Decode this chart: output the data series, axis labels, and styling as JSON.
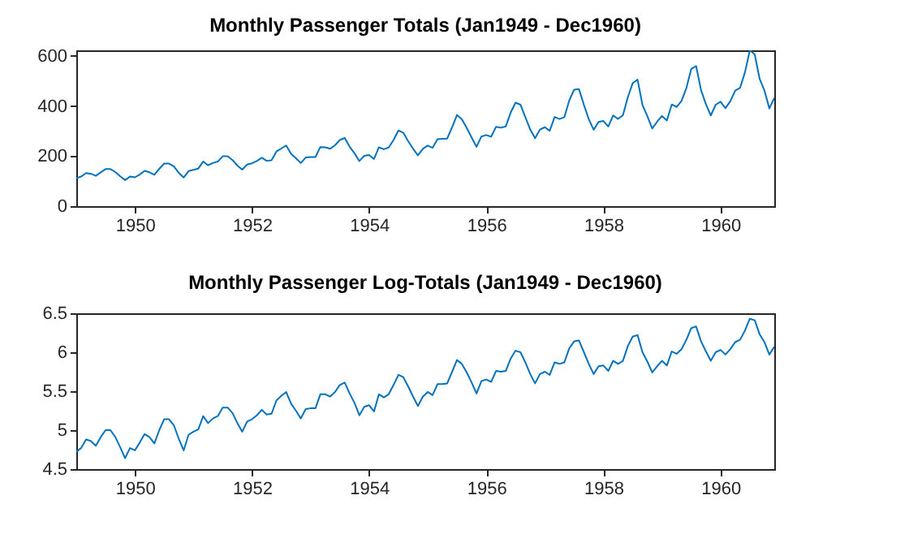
{
  "chart_data": [
    {
      "type": "line",
      "title": "Monthly Passenger Totals (Jan1949 - Dec1960)",
      "xlim": [
        1949,
        1960.917
      ],
      "xticks": [
        1950,
        1952,
        1954,
        1956,
        1958,
        1960
      ],
      "ylim": [
        0,
        622
      ],
      "yticks": [
        0,
        200,
        400,
        600
      ],
      "grid": false,
      "x": [
        1949,
        1949.083,
        1949.167,
        1949.25,
        1949.333,
        1949.417,
        1949.5,
        1949.583,
        1949.667,
        1949.75,
        1949.833,
        1949.917,
        1950,
        1950.083,
        1950.167,
        1950.25,
        1950.333,
        1950.417,
        1950.5,
        1950.583,
        1950.667,
        1950.75,
        1950.833,
        1950.917,
        1951,
        1951.083,
        1951.167,
        1951.25,
        1951.333,
        1951.417,
        1951.5,
        1951.583,
        1951.667,
        1951.75,
        1951.833,
        1951.917,
        1952,
        1952.083,
        1952.167,
        1952.25,
        1952.333,
        1952.417,
        1952.5,
        1952.583,
        1952.667,
        1952.75,
        1952.833,
        1952.917,
        1953,
        1953.083,
        1953.167,
        1953.25,
        1953.333,
        1953.417,
        1953.5,
        1953.583,
        1953.667,
        1953.75,
        1953.833,
        1953.917,
        1954,
        1954.083,
        1954.167,
        1954.25,
        1954.333,
        1954.417,
        1954.5,
        1954.583,
        1954.667,
        1954.75,
        1954.833,
        1954.917,
        1955,
        1955.083,
        1955.167,
        1955.25,
        1955.333,
        1955.417,
        1955.5,
        1955.583,
        1955.667,
        1955.75,
        1955.833,
        1955.917,
        1956,
        1956.083,
        1956.167,
        1956.25,
        1956.333,
        1956.417,
        1956.5,
        1956.583,
        1956.667,
        1956.75,
        1956.833,
        1956.917,
        1957,
        1957.083,
        1957.167,
        1957.25,
        1957.333,
        1957.417,
        1957.5,
        1957.583,
        1957.667,
        1957.75,
        1957.833,
        1957.917,
        1958,
        1958.083,
        1958.167,
        1958.25,
        1958.333,
        1958.417,
        1958.5,
        1958.583,
        1958.667,
        1958.75,
        1958.833,
        1958.917,
        1959,
        1959.083,
        1959.167,
        1959.25,
        1959.333,
        1959.417,
        1959.5,
        1959.583,
        1959.667,
        1959.75,
        1959.833,
        1959.917,
        1960,
        1960.083,
        1960.167,
        1960.25,
        1960.333,
        1960.417,
        1960.5,
        1960.583,
        1960.667,
        1960.75,
        1960.833,
        1960.917
      ],
      "series": [
        {
          "color": "#0072bd",
          "values": [
            112,
            118,
            132,
            129,
            121,
            135,
            148,
            148,
            136,
            119,
            104,
            118,
            115,
            126,
            141,
            135,
            125,
            149,
            170,
            170,
            158,
            133,
            114,
            140,
            145,
            150,
            178,
            163,
            172,
            178,
            199,
            199,
            184,
            162,
            146,
            166,
            171,
            180,
            193,
            181,
            183,
            218,
            230,
            242,
            209,
            191,
            172,
            194,
            196,
            196,
            236,
            235,
            229,
            243,
            264,
            272,
            237,
            211,
            180,
            201,
            204,
            188,
            235,
            227,
            234,
            264,
            302,
            293,
            259,
            229,
            203,
            229,
            242,
            233,
            267,
            269,
            270,
            315,
            364,
            347,
            312,
            274,
            237,
            278,
            284,
            277,
            317,
            313,
            318,
            374,
            413,
            405,
            355,
            306,
            271,
            306,
            315,
            301,
            356,
            348,
            355,
            422,
            465,
            467,
            404,
            347,
            305,
            336,
            340,
            318,
            362,
            348,
            363,
            435,
            491,
            505,
            404,
            359,
            310,
            337,
            360,
            342,
            406,
            396,
            420,
            472,
            548,
            559,
            463,
            407,
            362,
            405,
            417,
            391,
            419,
            461,
            472,
            535,
            622,
            606,
            508,
            461,
            390,
            432
          ]
        }
      ]
    },
    {
      "type": "line",
      "title": "Monthly Passenger Log-Totals (Jan1949 - Dec1960)",
      "xlim": [
        1949,
        1960.917
      ],
      "xticks": [
        1950,
        1952,
        1954,
        1956,
        1958,
        1960
      ],
      "ylim": [
        4.5,
        6.5
      ],
      "yticks": [
        4.5,
        5,
        5.5,
        6,
        6.5
      ],
      "grid": false,
      "x": [
        1949,
        1949.083,
        1949.167,
        1949.25,
        1949.333,
        1949.417,
        1949.5,
        1949.583,
        1949.667,
        1949.75,
        1949.833,
        1949.917,
        1950,
        1950.083,
        1950.167,
        1950.25,
        1950.333,
        1950.417,
        1950.5,
        1950.583,
        1950.667,
        1950.75,
        1950.833,
        1950.917,
        1951,
        1951.083,
        1951.167,
        1951.25,
        1951.333,
        1951.417,
        1951.5,
        1951.583,
        1951.667,
        1951.75,
        1951.833,
        1951.917,
        1952,
        1952.083,
        1952.167,
        1952.25,
        1952.333,
        1952.417,
        1952.5,
        1952.583,
        1952.667,
        1952.75,
        1952.833,
        1952.917,
        1953,
        1953.083,
        1953.167,
        1953.25,
        1953.333,
        1953.417,
        1953.5,
        1953.583,
        1953.667,
        1953.75,
        1953.833,
        1953.917,
        1954,
        1954.083,
        1954.167,
        1954.25,
        1954.333,
        1954.417,
        1954.5,
        1954.583,
        1954.667,
        1954.75,
        1954.833,
        1954.917,
        1955,
        1955.083,
        1955.167,
        1955.25,
        1955.333,
        1955.417,
        1955.5,
        1955.583,
        1955.667,
        1955.75,
        1955.833,
        1955.917,
        1956,
        1956.083,
        1956.167,
        1956.25,
        1956.333,
        1956.417,
        1956.5,
        1956.583,
        1956.667,
        1956.75,
        1956.833,
        1956.917,
        1957,
        1957.083,
        1957.167,
        1957.25,
        1957.333,
        1957.417,
        1957.5,
        1957.583,
        1957.667,
        1957.75,
        1957.833,
        1957.917,
        1958,
        1958.083,
        1958.167,
        1958.25,
        1958.333,
        1958.417,
        1958.5,
        1958.583,
        1958.667,
        1958.75,
        1958.833,
        1958.917,
        1959,
        1959.083,
        1959.167,
        1959.25,
        1959.333,
        1959.417,
        1959.5,
        1959.583,
        1959.667,
        1959.75,
        1959.833,
        1959.917,
        1960,
        1960.083,
        1960.167,
        1960.25,
        1960.333,
        1960.417,
        1960.5,
        1960.583,
        1960.667,
        1960.75,
        1960.833,
        1960.917
      ],
      "series": [
        {
          "color": "#0072bd",
          "values": [
            4.72,
            4.77,
            4.88,
            4.86,
            4.8,
            4.91,
            5.0,
            5.0,
            4.91,
            4.78,
            4.64,
            4.77,
            4.74,
            4.84,
            4.95,
            4.91,
            4.83,
            5.0,
            5.14,
            5.14,
            5.06,
            4.89,
            4.74,
            4.94,
            4.98,
            5.01,
            5.18,
            5.09,
            5.15,
            5.18,
            5.29,
            5.29,
            5.22,
            5.09,
            4.98,
            5.11,
            5.14,
            5.19,
            5.26,
            5.2,
            5.21,
            5.38,
            5.44,
            5.49,
            5.34,
            5.25,
            5.15,
            5.27,
            5.28,
            5.28,
            5.46,
            5.46,
            5.43,
            5.49,
            5.58,
            5.61,
            5.47,
            5.35,
            5.19,
            5.3,
            5.32,
            5.24,
            5.46,
            5.42,
            5.46,
            5.58,
            5.71,
            5.68,
            5.56,
            5.43,
            5.31,
            5.43,
            5.49,
            5.45,
            5.59,
            5.59,
            5.6,
            5.75,
            5.9,
            5.85,
            5.74,
            5.61,
            5.47,
            5.63,
            5.65,
            5.62,
            5.76,
            5.75,
            5.76,
            5.92,
            6.02,
            6.0,
            5.87,
            5.72,
            5.6,
            5.72,
            5.75,
            5.71,
            5.87,
            5.85,
            5.87,
            6.05,
            6.14,
            6.15,
            6.0,
            5.85,
            5.72,
            5.82,
            5.83,
            5.76,
            5.89,
            5.85,
            5.89,
            6.08,
            6.2,
            6.22,
            6.0,
            5.88,
            5.74,
            5.82,
            5.89,
            5.83,
            6.01,
            5.98,
            6.04,
            6.16,
            6.31,
            6.33,
            6.14,
            6.01,
            5.89,
            6.0,
            6.03,
            5.97,
            6.04,
            6.13,
            6.16,
            6.28,
            6.43,
            6.41,
            6.23,
            6.13,
            5.97,
            6.07
          ]
        }
      ]
    }
  ]
}
